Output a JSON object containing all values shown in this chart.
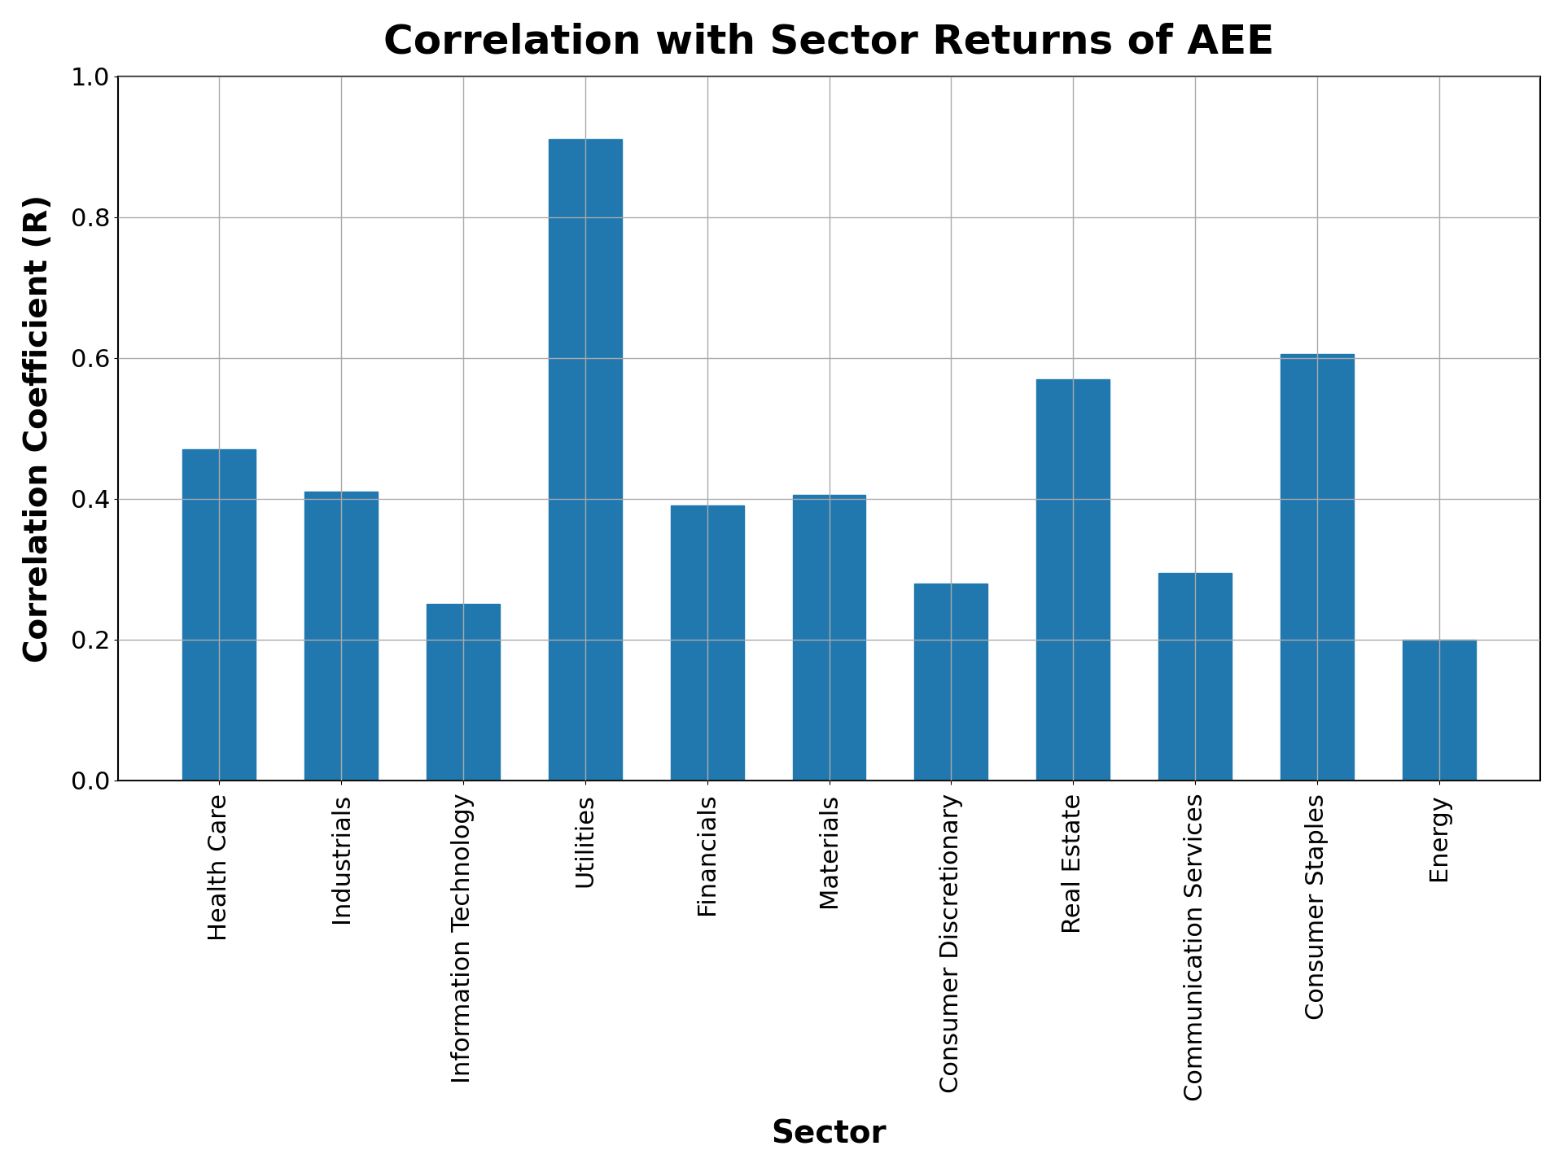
{
  "title": "Correlation with Sector Returns of AEE",
  "xlabel": "Sector",
  "ylabel": "Correlation Coefficient (R)",
  "categories": [
    "Health Care",
    "Industrials",
    "Information Technology",
    "Utilities",
    "Financials",
    "Materials",
    "Consumer Discretionary",
    "Real Estate",
    "Communication Services",
    "Consumer Staples",
    "Energy"
  ],
  "values": [
    0.47,
    0.41,
    0.25,
    0.91,
    0.39,
    0.405,
    0.28,
    0.57,
    0.295,
    0.605,
    0.2
  ],
  "bar_color": "#2178ae",
  "ylim": [
    0.0,
    1.0
  ],
  "yticks": [
    0.0,
    0.2,
    0.4,
    0.6,
    0.8,
    1.0
  ],
  "title_fontsize": 36,
  "label_fontsize": 28,
  "tick_fontsize": 22,
  "xtick_fontsize": 22,
  "background_color": "#ffffff",
  "grid_color": "#aaaaaa"
}
